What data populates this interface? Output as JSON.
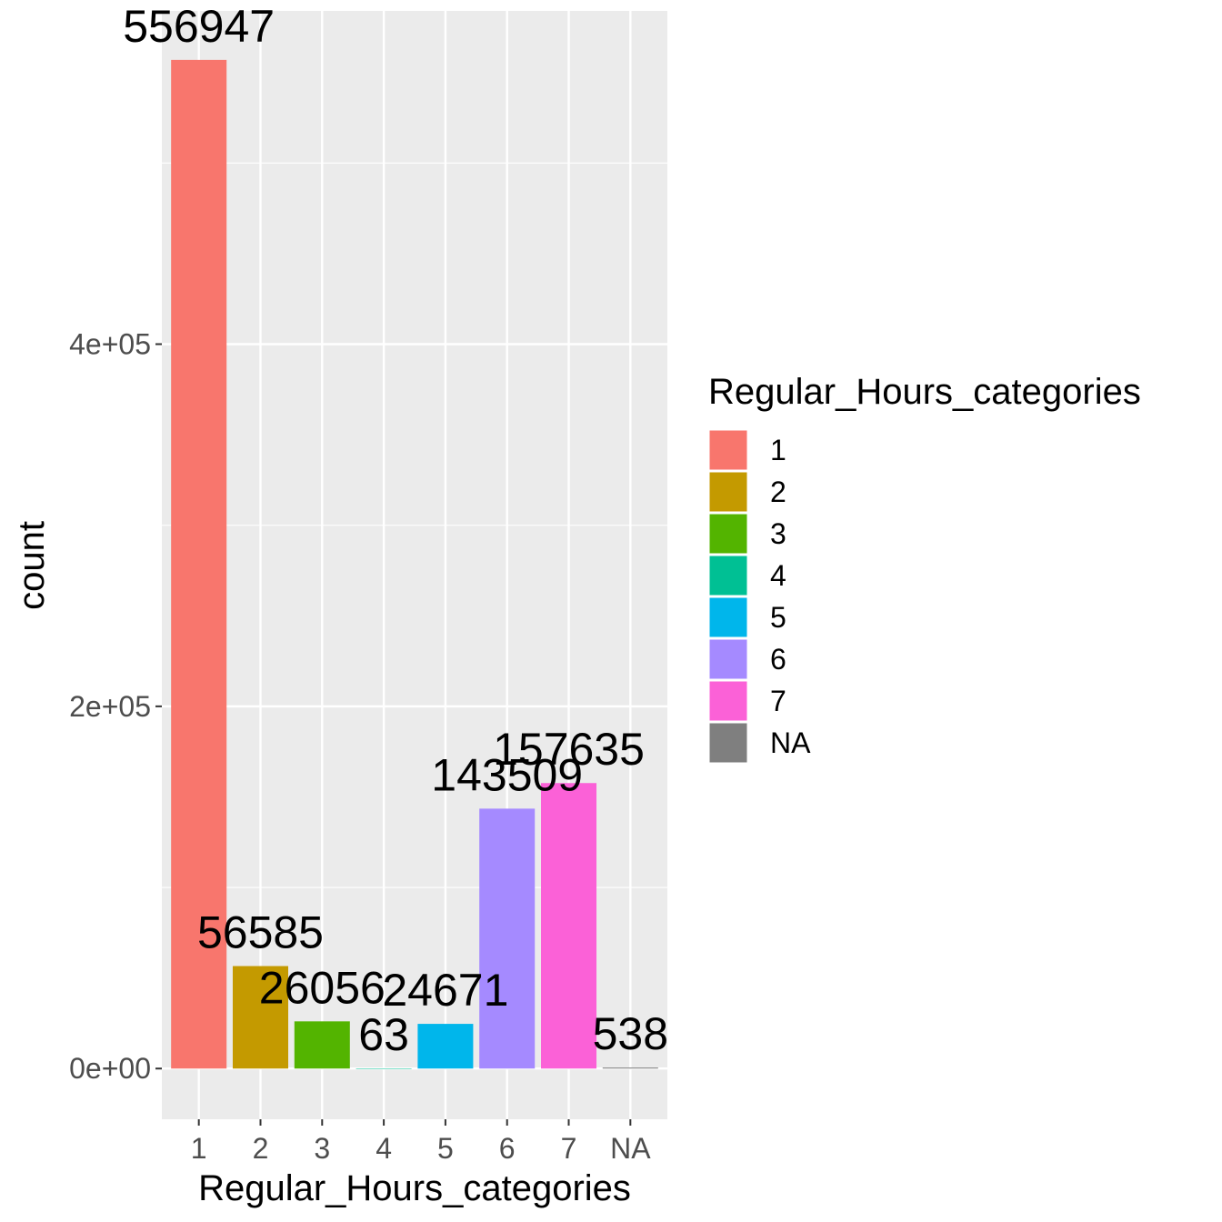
{
  "chart_data": {
    "type": "bar",
    "categories": [
      "1",
      "2",
      "3",
      "4",
      "5",
      "6",
      "7",
      "NA"
    ],
    "values": [
      556947,
      56585,
      26056,
      63,
      24671,
      143509,
      157635,
      538
    ],
    "data_labels": [
      "556947",
      "56585",
      "26056",
      "63",
      "24671",
      "143509",
      "157635",
      "538"
    ],
    "colors": [
      "#F8766D",
      "#C49A00",
      "#53B400",
      "#00C094",
      "#00B6EB",
      "#A58AFF",
      "#FB61D7",
      "#7F7F7F"
    ],
    "xlabel": "Regular_Hours_categories",
    "ylabel": "count",
    "yticks": [
      0,
      200000,
      400000
    ],
    "ytick_labels": [
      "0e+00",
      "2e+05",
      "4e+05"
    ],
    "ylim": [
      -28000,
      584000
    ],
    "grid": true,
    "legend": {
      "title": "Regular_Hours_categories",
      "position": "right",
      "entries": [
        "1",
        "2",
        "3",
        "4",
        "5",
        "6",
        "7",
        "NA"
      ]
    }
  }
}
